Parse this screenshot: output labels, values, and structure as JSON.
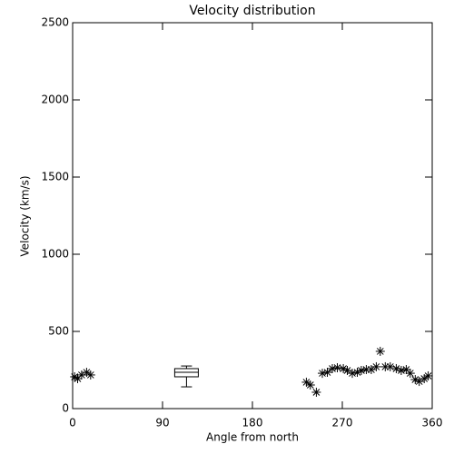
{
  "chart_data": {
    "type": "scatter",
    "title": "Velocity distribution",
    "x_label": "Angle from north",
    "y_label": "Velocity (km/s)",
    "xlim": [
      0,
      360
    ],
    "ylim": [
      0,
      2500
    ],
    "xticks": [
      0,
      90,
      180,
      270,
      360
    ],
    "yticks": [
      0,
      500,
      1000,
      1500,
      2000,
      2500
    ],
    "color": "#000000",
    "marker": "asterisk",
    "series": [
      {
        "name": "points",
        "x": [
          2,
          5,
          9,
          14,
          18,
          234,
          238,
          244,
          250,
          255,
          260,
          265,
          271,
          275,
          280,
          285,
          289,
          294,
          299,
          304,
          308,
          313,
          318,
          324,
          329,
          334,
          338,
          343,
          347,
          352,
          356
        ],
        "values": [
          206,
          194,
          218,
          235,
          218,
          171,
          153,
          106,
          229,
          235,
          259,
          265,
          259,
          247,
          229,
          235,
          247,
          253,
          253,
          271,
          371,
          271,
          271,
          259,
          247,
          253,
          229,
          188,
          176,
          194,
          212
        ]
      }
    ],
    "box": {
      "x": 114,
      "low": 141,
      "q1": 206,
      "median": 235,
      "q3": 259,
      "high": 276
    }
  }
}
